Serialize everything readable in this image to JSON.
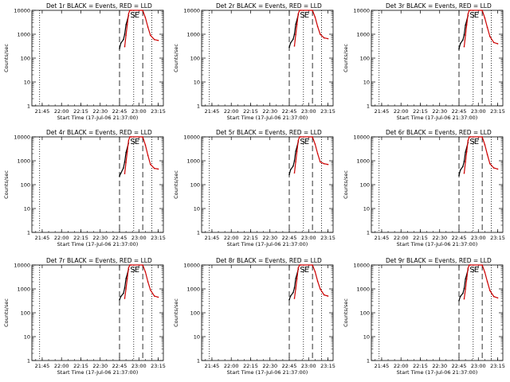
{
  "chart_data": [
    {
      "type": "line",
      "title": "Det 1r BLACK = Events, RED = LLD",
      "xlabel": "Start Time (17-Jul-06 21:37:00)",
      "ylabel": "Counts/sec",
      "yscale": "log",
      "ylim": [
        1,
        10000
      ],
      "xlim": [
        "21:37",
        "23:19"
      ],
      "x_ticks": [
        "21:45",
        "22:00",
        "22:15",
        "22:30",
        "22:45",
        "23:00",
        "23:15"
      ],
      "y_ticks": [
        "1",
        "10",
        "100",
        "1000",
        "10000"
      ],
      "markers": [
        "S",
        "E"
      ],
      "series": [
        {
          "name": "Events",
          "color": "#000000",
          "x": [
            "22:45",
            "22:46",
            "22:48",
            "22:49",
            "22:50",
            "22:52"
          ],
          "y": [
            250,
            420,
            600,
            1000,
            2500,
            6000
          ]
        },
        {
          "name": "LLD",
          "color": "#cc0000",
          "x": [
            "22:49",
            "22:50",
            "22:51",
            "22:52",
            "22:53",
            "22:54",
            "23:03",
            "23:05",
            "23:07",
            "23:09",
            "23:12",
            "23:15"
          ],
          "y": [
            300,
            900,
            2500,
            7000,
            10000,
            10000,
            10000,
            5000,
            2000,
            900,
            600,
            550
          ]
        }
      ]
    },
    {
      "type": "line",
      "title": "Det 2r BLACK = Events, RED = LLD",
      "xlabel": "Start Time (17-Jul-06 21:37:00)",
      "ylabel": "Counts/sec",
      "yscale": "log",
      "ylim": [
        1,
        10000
      ],
      "xlim": [
        "21:37",
        "23:19"
      ],
      "x_ticks": [
        "21:45",
        "22:00",
        "22:15",
        "22:30",
        "22:45",
        "23:00",
        "23:15"
      ],
      "y_ticks": [
        "1",
        "10",
        "100",
        "1000",
        "10000"
      ],
      "markers": [
        "S",
        "E"
      ],
      "series": [
        {
          "name": "Events",
          "color": "#000000",
          "x": [
            "22:45",
            "22:46",
            "22:48",
            "22:49",
            "22:50",
            "22:52"
          ],
          "y": [
            280,
            430,
            620,
            1000,
            2600,
            6500
          ]
        },
        {
          "name": "LLD",
          "color": "#cc0000",
          "x": [
            "22:49",
            "22:50",
            "22:51",
            "22:52",
            "22:53",
            "22:54",
            "23:03",
            "23:05",
            "23:07",
            "23:09",
            "23:12",
            "23:15"
          ],
          "y": [
            320,
            950,
            2600,
            7200,
            10000,
            10000,
            10000,
            5200,
            2100,
            1000,
            700,
            650
          ]
        }
      ]
    },
    {
      "type": "line",
      "title": "Det 3r BLACK = Events, RED = LLD",
      "xlabel": "Start Time (17-Jul-06 21:37:00)",
      "ylabel": "Counts/sec",
      "yscale": "log",
      "ylim": [
        1,
        10000
      ],
      "xlim": [
        "21:37",
        "23:19"
      ],
      "x_ticks": [
        "21:45",
        "22:00",
        "22:15",
        "22:30",
        "22:45",
        "23:00",
        "23:15"
      ],
      "y_ticks": [
        "1",
        "10",
        "100",
        "1000",
        "10000"
      ],
      "markers": [
        "S",
        "E"
      ],
      "series": [
        {
          "name": "Events",
          "color": "#000000",
          "x": [
            "22:45",
            "22:46",
            "22:48",
            "22:49",
            "22:50",
            "22:52"
          ],
          "y": [
            240,
            400,
            580,
            950,
            2400,
            6000
          ]
        },
        {
          "name": "LLD",
          "color": "#cc0000",
          "x": [
            "22:49",
            "22:50",
            "22:51",
            "22:52",
            "22:53",
            "22:54",
            "23:03",
            "23:05",
            "23:07",
            "23:09",
            "23:12",
            "23:15"
          ],
          "y": [
            300,
            900,
            2500,
            7000,
            10000,
            10000,
            10000,
            4800,
            1900,
            800,
            450,
            400
          ]
        }
      ]
    },
    {
      "type": "line",
      "title": "Det 4r BLACK = Events, RED = LLD",
      "xlabel": "Start Time (17-Jul-06 21:37:00)",
      "ylabel": "Counts/sec",
      "yscale": "log",
      "ylim": [
        1,
        10000
      ],
      "xlim": [
        "21:37",
        "23:19"
      ],
      "x_ticks": [
        "21:45",
        "22:00",
        "22:15",
        "22:30",
        "22:45",
        "23:00",
        "23:15"
      ],
      "y_ticks": [
        "1",
        "10",
        "100",
        "1000",
        "10000"
      ],
      "markers": [
        "S",
        "E"
      ],
      "series": [
        {
          "name": "Events",
          "color": "#000000",
          "x": [
            "22:45",
            "22:46",
            "22:48",
            "22:49",
            "22:50",
            "22:52"
          ],
          "y": [
            230,
            300,
            500,
            900,
            2200,
            5500
          ]
        },
        {
          "name": "LLD",
          "color": "#cc0000",
          "x": [
            "22:49",
            "22:50",
            "22:51",
            "22:52",
            "22:53",
            "22:54",
            "23:03",
            "23:05",
            "23:07",
            "23:09",
            "23:12",
            "23:15"
          ],
          "y": [
            290,
            850,
            2400,
            6800,
            10000,
            10000,
            10000,
            4600,
            1700,
            700,
            480,
            450
          ]
        }
      ]
    },
    {
      "type": "line",
      "title": "Det 5r BLACK = Events, RED = LLD",
      "xlabel": "Start Time (17-Jul-06 21:37:00)",
      "ylabel": "Counts/sec",
      "yscale": "log",
      "ylim": [
        1,
        10000
      ],
      "xlim": [
        "21:37",
        "23:19"
      ],
      "x_ticks": [
        "21:45",
        "22:00",
        "22:15",
        "22:30",
        "22:45",
        "23:00",
        "23:15"
      ],
      "y_ticks": [
        "1",
        "10",
        "100",
        "1000",
        "10000"
      ],
      "markers": [
        "S",
        "E"
      ],
      "series": [
        {
          "name": "Events",
          "color": "#000000",
          "x": [
            "22:45",
            "22:46",
            "22:48",
            "22:49",
            "22:50",
            "22:52"
          ],
          "y": [
            260,
            420,
            600,
            1000,
            2500,
            6200
          ]
        },
        {
          "name": "LLD",
          "color": "#cc0000",
          "x": [
            "22:49",
            "22:50",
            "22:51",
            "22:52",
            "22:53",
            "22:54",
            "23:03",
            "23:05",
            "23:07",
            "23:09",
            "23:12",
            "23:15"
          ],
          "y": [
            310,
            900,
            2500,
            7000,
            10000,
            10000,
            10000,
            5000,
            2000,
            900,
            750,
            700
          ]
        }
      ]
    },
    {
      "type": "line",
      "title": "Det 6r BLACK = Events, RED = LLD",
      "xlabel": "Start Time (17-Jul-06 21:37:00)",
      "ylabel": "Counts/sec",
      "yscale": "log",
      "ylim": [
        1,
        10000
      ],
      "xlim": [
        "21:37",
        "23:19"
      ],
      "x_ticks": [
        "21:45",
        "22:00",
        "22:15",
        "22:30",
        "22:45",
        "23:00",
        "23:15"
      ],
      "y_ticks": [
        "1",
        "10",
        "100",
        "1000",
        "10000"
      ],
      "markers": [
        "S",
        "E"
      ],
      "series": [
        {
          "name": "Events",
          "color": "#000000",
          "x": [
            "22:45",
            "22:46",
            "22:48",
            "22:49",
            "22:50",
            "22:52"
          ],
          "y": [
            240,
            400,
            580,
            950,
            2300,
            5800
          ]
        },
        {
          "name": "LLD",
          "color": "#cc0000",
          "x": [
            "22:49",
            "22:50",
            "22:51",
            "22:52",
            "22:53",
            "22:54",
            "23:03",
            "23:05",
            "23:07",
            "23:09",
            "23:12",
            "23:15"
          ],
          "y": [
            300,
            880,
            2400,
            6900,
            10000,
            10000,
            10000,
            4700,
            1800,
            750,
            500,
            450
          ]
        }
      ]
    },
    {
      "type": "line",
      "title": "Det 7r BLACK = Events, RED = LLD",
      "xlabel": "Start Time (17-Jul-06 21:37:00)",
      "ylabel": "Counts/sec",
      "yscale": "log",
      "ylim": [
        1,
        10000
      ],
      "xlim": [
        "21:37",
        "23:19"
      ],
      "x_ticks": [
        "21:45",
        "22:00",
        "22:15",
        "22:30",
        "22:45",
        "23:00",
        "23:15"
      ],
      "y_ticks": [
        "1",
        "10",
        "100",
        "1000",
        "10000"
      ],
      "markers": [
        "S",
        "E"
      ],
      "series": [
        {
          "name": "Events",
          "color": "#000000",
          "x": [
            "22:45",
            "22:46",
            "22:48",
            "22:49",
            "22:50",
            "22:52"
          ],
          "y": [
            350,
            480,
            650,
            1100,
            2700,
            6500
          ]
        },
        {
          "name": "LLD",
          "color": "#cc0000",
          "x": [
            "22:49",
            "22:50",
            "22:51",
            "22:52",
            "22:53",
            "22:54",
            "23:03",
            "23:05",
            "23:07",
            "23:09",
            "23:12",
            "23:15"
          ],
          "y": [
            400,
            1000,
            2700,
            7500,
            10000,
            10000,
            10000,
            5200,
            2000,
            900,
            500,
            450
          ]
        }
      ]
    },
    {
      "type": "line",
      "title": "Det 8r BLACK = Events, RED = LLD",
      "xlabel": "Start Time (17-Jul-06 21:37:00)",
      "ylabel": "Counts/sec",
      "yscale": "log",
      "ylim": [
        1,
        10000
      ],
      "xlim": [
        "21:37",
        "23:19"
      ],
      "x_ticks": [
        "21:45",
        "22:00",
        "22:15",
        "22:30",
        "22:45",
        "23:00",
        "23:15"
      ],
      "y_ticks": [
        "1",
        "10",
        "100",
        "1000",
        "10000"
      ],
      "markers": [
        "S",
        "E"
      ],
      "series": [
        {
          "name": "Events",
          "color": "#000000",
          "x": [
            "22:45",
            "22:46",
            "22:48",
            "22:49",
            "22:50",
            "22:52"
          ],
          "y": [
            350,
            500,
            700,
            1100,
            2700,
            6600
          ]
        },
        {
          "name": "LLD",
          "color": "#cc0000",
          "x": [
            "22:49",
            "22:50",
            "22:51",
            "22:52",
            "22:53",
            "22:54",
            "23:03",
            "23:05",
            "23:07",
            "23:09",
            "23:12",
            "23:15"
          ],
          "y": [
            400,
            1000,
            2700,
            7600,
            10000,
            10000,
            10000,
            5300,
            2100,
            1000,
            560,
            500
          ]
        }
      ]
    },
    {
      "type": "line",
      "title": "Det 9r BLACK = Events, RED = LLD",
      "xlabel": "Start Time (17-Jul-06 21:37:00)",
      "ylabel": "Counts/sec",
      "yscale": "log",
      "ylim": [
        1,
        10000
      ],
      "xlim": [
        "21:37",
        "23:19"
      ],
      "x_ticks": [
        "21:45",
        "22:00",
        "22:15",
        "22:30",
        "22:45",
        "23:00",
        "23:15"
      ],
      "y_ticks": [
        "1",
        "10",
        "100",
        "1000",
        "10000"
      ],
      "markers": [
        "S",
        "E"
      ],
      "series": [
        {
          "name": "Events",
          "color": "#000000",
          "x": [
            "22:45",
            "22:46",
            "22:48",
            "22:49",
            "22:50",
            "22:52"
          ],
          "y": [
            320,
            480,
            650,
            1050,
            2600,
            6300
          ]
        },
        {
          "name": "LLD",
          "color": "#cc0000",
          "x": [
            "22:49",
            "22:50",
            "22:51",
            "22:52",
            "22:53",
            "22:54",
            "23:03",
            "23:05",
            "23:07",
            "23:09",
            "23:12",
            "23:15"
          ],
          "y": [
            380,
            980,
            2600,
            7300,
            10000,
            10000,
            10000,
            5000,
            2000,
            850,
            480,
            420
          ]
        }
      ]
    }
  ]
}
